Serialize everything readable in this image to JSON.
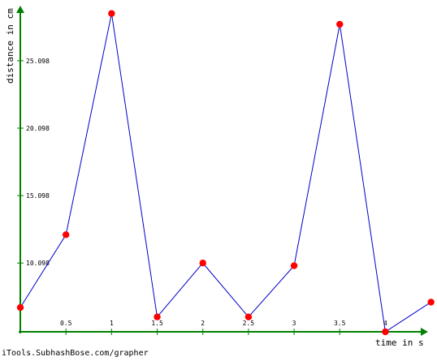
{
  "chart_data": {
    "type": "line",
    "xlabel": "time in s",
    "ylabel": "distance in cm",
    "x_ticks": [
      "0.5",
      "1",
      "1.5",
      "2",
      "2.5",
      "3",
      "3.5",
      "4"
    ],
    "y_ticks": [
      "10.098",
      "15.098",
      "20.098",
      "25.098"
    ],
    "xlim": [
      0,
      4.45
    ],
    "ylim": [
      5,
      29
    ],
    "series": [
      {
        "x": [
          0,
          0.5,
          1,
          1.5,
          2,
          2.5,
          3,
          3.5,
          4,
          4.5
        ],
        "y": [
          6.8,
          12.2,
          28.6,
          6.1,
          10.1,
          6.1,
          9.9,
          27.8,
          5.0,
          7.2
        ]
      }
    ],
    "grid": false,
    "line_color": "#0000cc",
    "marker_color": "#ff0000",
    "axis_color": "#008000"
  },
  "footer": {
    "credit": "iTools.SubhashBose.com/grapher"
  }
}
